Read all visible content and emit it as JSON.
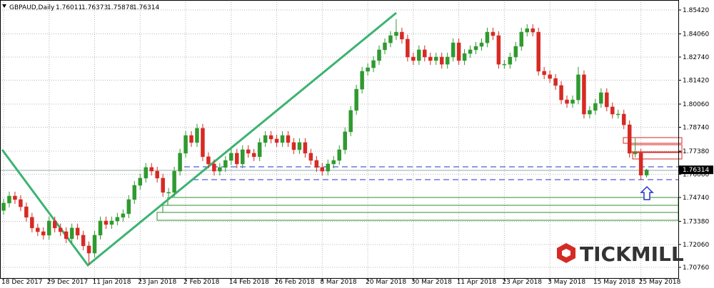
{
  "chart_data": {
    "type": "candlestick",
    "title": "GBPAUD,Daily",
    "up_color": "#2f9a2f",
    "down_color": "#d62a24",
    "grid": true,
    "watermark": "TICKMILL",
    "ylim": [
      1.7015,
      1.8599
    ],
    "yticks": [
      {
        "value": 1.8542,
        "label": "1.85420"
      },
      {
        "value": 1.8406,
        "label": "1.84060"
      },
      {
        "value": 1.8274,
        "label": "1.82740"
      },
      {
        "value": 1.8142,
        "label": "1.81420"
      },
      {
        "value": 1.8006,
        "label": "1.80060"
      },
      {
        "value": 1.7874,
        "label": "1.78740"
      },
      {
        "value": 1.7738,
        "label": "1.77380"
      },
      {
        "value": 1.7606,
        "label": "1.76060"
      },
      {
        "value": 1.7474,
        "label": "1.74740"
      },
      {
        "value": 1.7338,
        "label": "1.73380"
      },
      {
        "value": 1.7206,
        "label": "1.72060"
      },
      {
        "value": 1.7076,
        "label": "1.70760"
      }
    ],
    "categories": [
      "18 Dec 2017",
      null,
      null,
      null,
      null,
      null,
      null,
      null,
      "29 Dec 2017",
      null,
      null,
      null,
      null,
      null,
      null,
      null,
      "11 Jan 2018",
      null,
      null,
      null,
      null,
      null,
      null,
      null,
      "23 Jan 2018",
      null,
      null,
      null,
      null,
      null,
      null,
      null,
      "2 Feb 2018",
      null,
      null,
      null,
      null,
      null,
      null,
      null,
      "14 Feb 2018",
      null,
      null,
      null,
      null,
      null,
      null,
      null,
      "26 Feb 2018",
      null,
      null,
      null,
      null,
      null,
      null,
      null,
      "8 Mar 2018",
      null,
      null,
      null,
      null,
      null,
      null,
      null,
      "20 Mar 2018",
      null,
      null,
      null,
      null,
      null,
      null,
      null,
      "30 Mar 2018",
      null,
      null,
      null,
      null,
      null,
      null,
      null,
      "11 Apr 2018",
      null,
      null,
      null,
      null,
      null,
      null,
      null,
      "23 Apr 2018",
      null,
      null,
      null,
      null,
      null,
      null,
      null,
      "3 May 2018",
      null,
      null,
      null,
      null,
      null,
      null,
      null,
      "15 May 2018",
      null,
      null,
      null,
      null,
      null,
      null,
      null,
      "25 May 2018",
      null
    ],
    "candles": [
      [
        1.74,
        1.7467,
        1.7375,
        1.7442
      ],
      [
        1.7442,
        1.7507,
        1.7417,
        1.7482
      ],
      [
        1.7482,
        1.7507,
        1.7437,
        1.7462
      ],
      [
        1.7462,
        1.7487,
        1.7396,
        1.7421
      ],
      [
        1.7421,
        1.7446,
        1.7336,
        1.7361
      ],
      [
        1.7361,
        1.7386,
        1.7275,
        1.73
      ],
      [
        1.73,
        1.7325,
        1.7254,
        1.7279
      ],
      [
        1.7279,
        1.7304,
        1.7234,
        1.7259
      ],
      [
        1.7259,
        1.7365,
        1.7234,
        1.734
      ],
      [
        1.734,
        1.7365,
        1.7275,
        1.73
      ],
      [
        1.73,
        1.7325,
        1.7254,
        1.7279
      ],
      [
        1.7279,
        1.7304,
        1.7214,
        1.7239
      ],
      [
        1.7239,
        1.7325,
        1.7214,
        1.73
      ],
      [
        1.73,
        1.7325,
        1.7234,
        1.7259
      ],
      [
        1.7259,
        1.7284,
        1.7173,
        1.7198
      ],
      [
        1.7198,
        1.7223,
        1.709,
        1.7157
      ],
      [
        1.7157,
        1.7284,
        1.7132,
        1.7259
      ],
      [
        1.7259,
        1.7365,
        1.7234,
        1.734
      ],
      [
        1.734,
        1.7365,
        1.7295,
        1.732
      ],
      [
        1.732,
        1.7365,
        1.7295,
        1.734
      ],
      [
        1.734,
        1.7386,
        1.7315,
        1.7361
      ],
      [
        1.7361,
        1.7406,
        1.7336,
        1.7381
      ],
      [
        1.7381,
        1.7487,
        1.7356,
        1.7462
      ],
      [
        1.7462,
        1.7568,
        1.7437,
        1.7543
      ],
      [
        1.7543,
        1.7609,
        1.7518,
        1.7584
      ],
      [
        1.7584,
        1.767,
        1.7559,
        1.7645
      ],
      [
        1.7645,
        1.767,
        1.7599,
        1.7624
      ],
      [
        1.7624,
        1.7649,
        1.7559,
        1.7584
      ],
      [
        1.7584,
        1.7609,
        1.7478,
        1.7503
      ],
      [
        1.7503,
        1.7528,
        1.7478,
        1.7503
      ],
      [
        1.7503,
        1.7649,
        1.7478,
        1.7624
      ],
      [
        1.7624,
        1.7751,
        1.7599,
        1.7726
      ],
      [
        1.7726,
        1.7852,
        1.7701,
        1.7827
      ],
      [
        1.7827,
        1.7852,
        1.7762,
        1.7787
      ],
      [
        1.7787,
        1.7893,
        1.7762,
        1.7868
      ],
      [
        1.7868,
        1.7893,
        1.7681,
        1.7706
      ],
      [
        1.7706,
        1.7731,
        1.764,
        1.7665
      ],
      [
        1.7665,
        1.769,
        1.7599,
        1.7624
      ],
      [
        1.7624,
        1.767,
        1.7599,
        1.7645
      ],
      [
        1.7645,
        1.771,
        1.762,
        1.7685
      ],
      [
        1.7685,
        1.7751,
        1.766,
        1.7726
      ],
      [
        1.7726,
        1.7751,
        1.764,
        1.7665
      ],
      [
        1.7665,
        1.7771,
        1.764,
        1.7746
      ],
      [
        1.7746,
        1.7771,
        1.7701,
        1.7726
      ],
      [
        1.7726,
        1.7751,
        1.7681,
        1.7706
      ],
      [
        1.7706,
        1.7812,
        1.7681,
        1.7787
      ],
      [
        1.7787,
        1.7852,
        1.7762,
        1.7827
      ],
      [
        1.7827,
        1.7852,
        1.7782,
        1.7807
      ],
      [
        1.7807,
        1.7832,
        1.7762,
        1.7787
      ],
      [
        1.7787,
        1.7852,
        1.7762,
        1.7827
      ],
      [
        1.7827,
        1.7852,
        1.7762,
        1.7787
      ],
      [
        1.7787,
        1.7812,
        1.7721,
        1.7746
      ],
      [
        1.7746,
        1.7812,
        1.7721,
        1.7787
      ],
      [
        1.7787,
        1.7812,
        1.7701,
        1.7726
      ],
      [
        1.7726,
        1.7751,
        1.766,
        1.7685
      ],
      [
        1.7685,
        1.771,
        1.762,
        1.7645
      ],
      [
        1.7645,
        1.767,
        1.7599,
        1.7624
      ],
      [
        1.7624,
        1.769,
        1.7599,
        1.7665
      ],
      [
        1.7665,
        1.771,
        1.764,
        1.7685
      ],
      [
        1.7685,
        1.7771,
        1.766,
        1.7746
      ],
      [
        1.7746,
        1.7873,
        1.7721,
        1.7848
      ],
      [
        1.7848,
        1.7995,
        1.7823,
        1.797
      ],
      [
        1.797,
        1.8116,
        1.7945,
        1.8091
      ],
      [
        1.8091,
        1.8218,
        1.8066,
        1.8193
      ],
      [
        1.8193,
        1.8238,
        1.8168,
        1.8213
      ],
      [
        1.8213,
        1.8279,
        1.8188,
        1.8254
      ],
      [
        1.8254,
        1.834,
        1.8229,
        1.8315
      ],
      [
        1.8315,
        1.838,
        1.829,
        1.8355
      ],
      [
        1.8355,
        1.8421,
        1.833,
        1.8396
      ],
      [
        1.8396,
        1.849,
        1.8371,
        1.8416
      ],
      [
        1.8416,
        1.8441,
        1.8351,
        1.8376
      ],
      [
        1.8376,
        1.8401,
        1.8249,
        1.8274
      ],
      [
        1.8274,
        1.8299,
        1.8229,
        1.8254
      ],
      [
        1.8254,
        1.834,
        1.8229,
        1.8315
      ],
      [
        1.8315,
        1.834,
        1.8249,
        1.8274
      ],
      [
        1.8274,
        1.8299,
        1.8229,
        1.8254
      ],
      [
        1.8254,
        1.8299,
        1.8229,
        1.8274
      ],
      [
        1.8274,
        1.8299,
        1.8208,
        1.8233
      ],
      [
        1.8233,
        1.8299,
        1.8208,
        1.8274
      ],
      [
        1.8274,
        1.838,
        1.8249,
        1.8355
      ],
      [
        1.8355,
        1.838,
        1.8229,
        1.8254
      ],
      [
        1.8254,
        1.8319,
        1.8229,
        1.8294
      ],
      [
        1.8294,
        1.834,
        1.8269,
        1.8315
      ],
      [
        1.8315,
        1.836,
        1.829,
        1.8335
      ],
      [
        1.8335,
        1.838,
        1.831,
        1.8355
      ],
      [
        1.8355,
        1.8441,
        1.833,
        1.8416
      ],
      [
        1.8416,
        1.8441,
        1.8371,
        1.8396
      ],
      [
        1.8396,
        1.8421,
        1.8208,
        1.8233
      ],
      [
        1.8233,
        1.8258,
        1.8208,
        1.8233
      ],
      [
        1.8233,
        1.8299,
        1.8208,
        1.8274
      ],
      [
        1.8274,
        1.836,
        1.8249,
        1.8335
      ],
      [
        1.8335,
        1.8441,
        1.831,
        1.8416
      ],
      [
        1.8416,
        1.8461,
        1.8391,
        1.8436
      ],
      [
        1.8436,
        1.8461,
        1.8391,
        1.8416
      ],
      [
        1.8416,
        1.8441,
        1.8168,
        1.8193
      ],
      [
        1.8193,
        1.8218,
        1.8148,
        1.8173
      ],
      [
        1.8173,
        1.8198,
        1.8127,
        1.8152
      ],
      [
        1.8152,
        1.8177,
        1.8087,
        1.8112
      ],
      [
        1.8112,
        1.8137,
        1.8005,
        1.803
      ],
      [
        1.803,
        1.8055,
        1.7985,
        1.801
      ],
      [
        1.801,
        1.8055,
        1.7985,
        1.803
      ],
      [
        1.803,
        1.8218,
        1.8005,
        1.8173
      ],
      [
        1.8173,
        1.8198,
        1.7924,
        1.7949
      ],
      [
        1.7949,
        1.7995,
        1.7924,
        1.797
      ],
      [
        1.797,
        1.8035,
        1.7945,
        1.801
      ],
      [
        1.801,
        1.8096,
        1.7985,
        1.8071
      ],
      [
        1.8071,
        1.8096,
        1.7965,
        1.799
      ],
      [
        1.799,
        1.8015,
        1.7924,
        1.7949
      ],
      [
        1.7949,
        1.7974,
        1.7924,
        1.7949
      ],
      [
        1.7949,
        1.7974,
        1.7863,
        1.7888
      ],
      [
        1.7888,
        1.7913,
        1.7701,
        1.7726
      ],
      [
        1.7726,
        1.7812,
        1.7701,
        1.7726
      ],
      [
        1.7726,
        1.7751,
        1.7576,
        1.7601
      ],
      [
        1.76011,
        1.76373,
        1.75878,
        1.76314
      ]
    ]
  }
}
